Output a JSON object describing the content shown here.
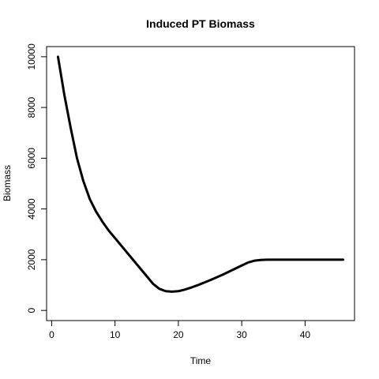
{
  "chart_data": {
    "type": "line",
    "title": "Induced PT Biomass",
    "xlabel": "Time",
    "ylabel": "Biomass",
    "xlim": [
      -0.8,
      47.8
    ],
    "ylim": [
      -400,
      10400
    ],
    "xticks": [
      0,
      10,
      20,
      30,
      40
    ],
    "yticks": [
      0,
      2000,
      4000,
      6000,
      8000,
      10000
    ],
    "grid": false,
    "legend": "none",
    "line_color": "#000000",
    "series": [
      {
        "x": [
          1,
          2,
          3,
          4,
          5,
          6,
          7,
          8,
          9,
          10,
          11,
          12,
          13,
          14,
          15,
          16,
          17,
          18,
          19,
          20,
          21,
          22,
          23,
          24,
          25,
          26,
          27,
          28,
          29,
          30,
          31,
          32,
          33,
          34,
          35,
          36,
          37,
          38,
          39,
          40,
          41,
          42,
          43,
          44,
          45,
          46
        ],
        "values": [
          10000,
          8500,
          7200,
          6000,
          5100,
          4400,
          3900,
          3500,
          3150,
          2850,
          2550,
          2250,
          1950,
          1650,
          1350,
          1050,
          850,
          760,
          740,
          760,
          820,
          900,
          990,
          1090,
          1190,
          1300,
          1410,
          1530,
          1650,
          1770,
          1890,
          1960,
          1990,
          2000,
          2000,
          2000,
          2000,
          2000,
          2000,
          2000,
          2000,
          2000,
          2000,
          2000,
          2000,
          2000
        ]
      }
    ]
  }
}
